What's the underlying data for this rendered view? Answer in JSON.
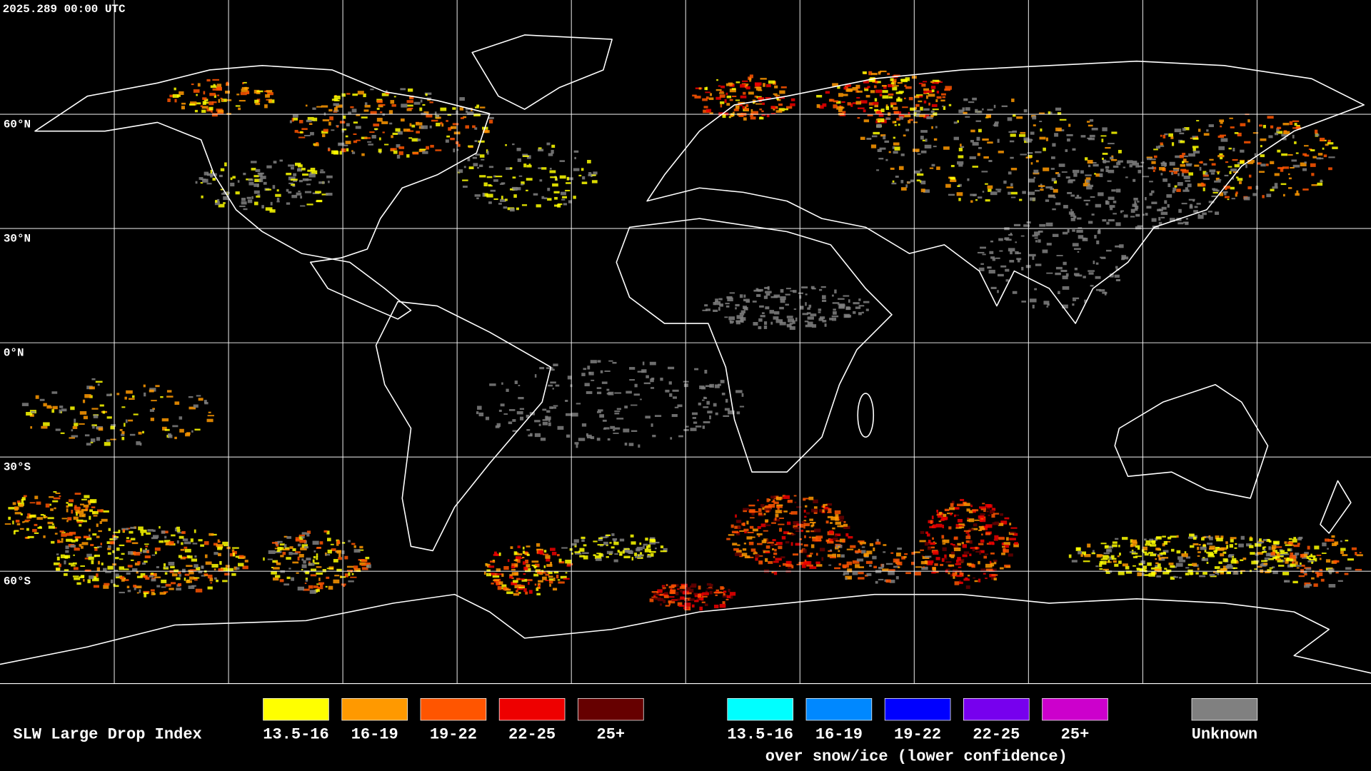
{
  "header": {
    "timestamp": "2025.289 00:00 UTC"
  },
  "map": {
    "lat_labels": [
      "60°N",
      "30°N",
      "0°N",
      "30°S",
      "60°S"
    ]
  },
  "legend": {
    "title": "SLW Large Drop Index",
    "items": [
      {
        "label": "13.5-16",
        "color": "#ffff00"
      },
      {
        "label": "16-19",
        "color": "#ff9900"
      },
      {
        "label": "19-22",
        "color": "#ff5500"
      },
      {
        "label": "22-25",
        "color": "#ee0000"
      },
      {
        "label": "25+",
        "color": "#660000"
      }
    ],
    "snow_items": [
      {
        "label": "13.5-16",
        "color": "#00ffff"
      },
      {
        "label": "16-19",
        "color": "#0088ff"
      },
      {
        "label": "19-22",
        "color": "#0000ff"
      },
      {
        "label": "22-25",
        "color": "#7700ee"
      },
      {
        "label": "25+",
        "color": "#cc00cc"
      }
    ],
    "snow_caption": "over snow/ice (lower confidence)",
    "unknown": {
      "label": "Unknown",
      "color": "#808080"
    }
  }
}
